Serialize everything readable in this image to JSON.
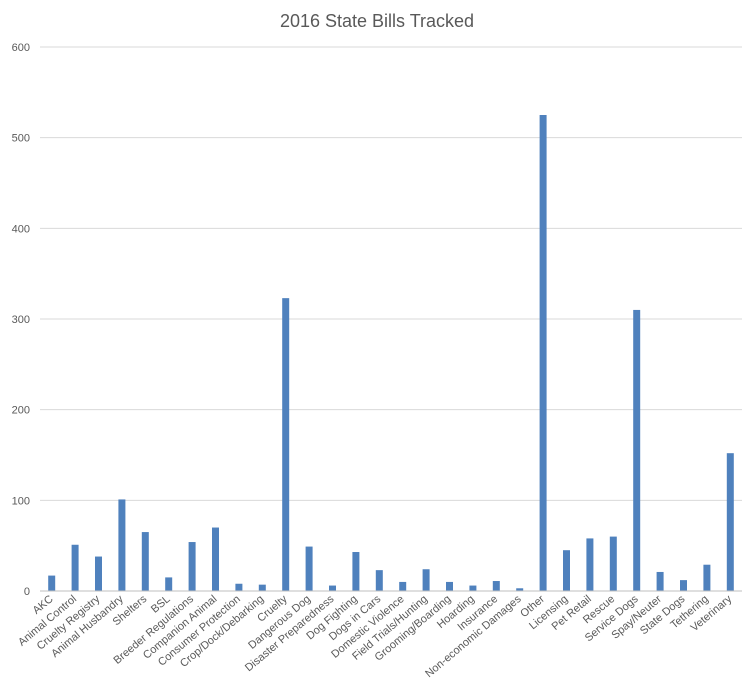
{
  "chart_data": {
    "type": "bar",
    "title": "2016 State Bills Tracked",
    "xlabel": "",
    "ylabel": "",
    "ylim": [
      0,
      600
    ],
    "yticks": [
      "0",
      "100",
      "200",
      "300",
      "400",
      "500",
      "600"
    ],
    "grid": true,
    "legend": "none",
    "bar_color": "#4f81bd",
    "categories": [
      "AKC",
      "Animal Control",
      "Cruelty Registry",
      "Animal Husbandry",
      "Shelters",
      "BSL",
      "Breeder Regulations",
      "Companion Animal",
      "Consumer Protection",
      "Crop/Dock/Debarking",
      "Cruelty",
      "Dangerous Dog",
      "Disaster Preparedness",
      "Dog Fighting",
      "Dogs in Cars",
      "Domestic Violence",
      "Field Trials/Hunting",
      "Grooming/Boarding",
      "Hoarding",
      "Insurance",
      "Non-economic Damages",
      "Other",
      "Licensing",
      "Pet Retail",
      "Rescue",
      "Service Dogs",
      "Spay/Neuter",
      "State Dogs",
      "Tethering",
      "Veterinary"
    ],
    "values": [
      17,
      51,
      38,
      101,
      65,
      15,
      54,
      70,
      8,
      7,
      323,
      49,
      6,
      43,
      23,
      10,
      24,
      10,
      6,
      11,
      3,
      525,
      45,
      58,
      60,
      310,
      21,
      12,
      29,
      152
    ]
  }
}
